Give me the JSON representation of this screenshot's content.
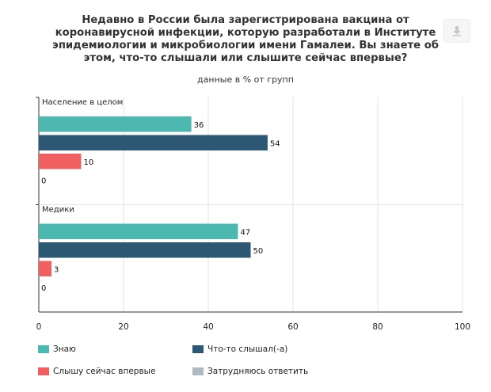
{
  "chart_data": {
    "type": "bar",
    "orientation": "horizontal",
    "title": "Недавно в России была зарегистрирована вакцина от коронавирусной инфекции, которую разработали в Институте эпидемиологии и микробиологии имени Гамалеи. Вы знаете об этом, что-то слышали или слышите сейчас впервые?",
    "subtitle": "данные в % от групп",
    "categories": [
      "Население в целом",
      "Медики"
    ],
    "series": [
      {
        "name": "Знаю",
        "color": "#4db8b0",
        "values": [
          36,
          47
        ]
      },
      {
        "name": "Что-то слышал(-а)",
        "color": "#2d5873",
        "values": [
          54,
          50
        ]
      },
      {
        "name": "Слышу сейчас впервые",
        "color": "#f06060",
        "values": [
          10,
          3
        ]
      },
      {
        "name": "Затрудняюсь ответить",
        "color": "#aeb9c3",
        "values": [
          0,
          0
        ]
      }
    ],
    "xlim": [
      0,
      100
    ],
    "xticks": [
      "0",
      "20",
      "40",
      "60",
      "80",
      "100"
    ],
    "grid": true,
    "legend_position": "bottom"
  },
  "icons": {
    "export": "download-icon"
  }
}
